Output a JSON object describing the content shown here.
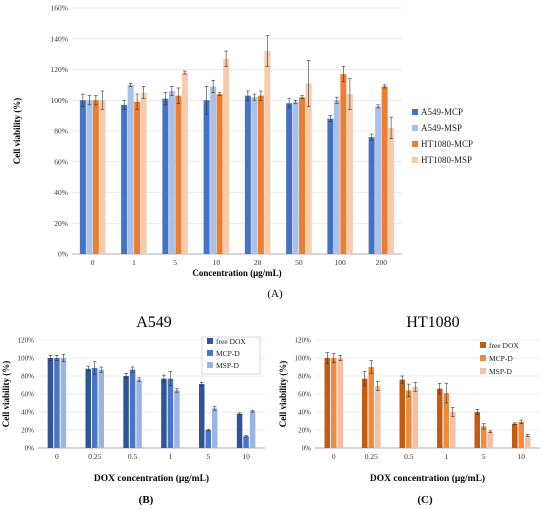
{
  "panel_labels": {
    "a": "(A)",
    "b": "(B)",
    "c": "(C)"
  },
  "colors": {
    "dark_blue": "#4472c4",
    "light_blue": "#a9c0e8",
    "dark_orange": "#ed7d31",
    "light_orange": "#f8cbad",
    "deep_blue": "#2f5597",
    "mid_blue": "#4a75c8",
    "pale_blue": "#9bb5e3",
    "deep_orange": "#c55a11",
    "mid_orange": "#f08a3c",
    "pale_orange": "#f6bfa3"
  },
  "chart_data": [
    {
      "type": "bar",
      "title": "",
      "xlabel": "Concentration (μg/mL)",
      "ylabel": "Cell viability (%)",
      "ylim": [
        0,
        160
      ],
      "yticks": [
        "0%",
        "20%",
        "40%",
        "60%",
        "80%",
        "100%",
        "120%",
        "140%",
        "160%"
      ],
      "categories": [
        "0",
        "1",
        "5",
        "10",
        "20",
        "50",
        "100",
        "200"
      ],
      "legend_position": "right",
      "series": [
        {
          "name": "A549-MCP",
          "color": "#4472c4",
          "values": [
            100,
            97,
            101,
            100,
            103,
            98,
            88,
            76
          ],
          "errors": [
            4,
            3,
            4,
            9,
            3,
            3,
            2,
            2
          ]
        },
        {
          "name": "A549-MSP",
          "color": "#a9c0e8",
          "values": [
            100,
            110,
            106,
            109,
            102,
            99,
            100,
            96
          ],
          "errors": [
            3,
            1,
            3,
            4,
            2,
            1,
            2,
            1
          ]
        },
        {
          "name": "HT1080-MCP",
          "color": "#ed7d31",
          "values": [
            100,
            99,
            103,
            104,
            103,
            102,
            117,
            109
          ],
          "errors": [
            3,
            5,
            5,
            1,
            3,
            1,
            5,
            1
          ]
        },
        {
          "name": "HT1080-MSP",
          "color": "#f8cbad",
          "values": [
            100,
            105,
            118,
            127,
            132,
            111,
            104,
            82
          ],
          "errors": [
            6,
            4,
            1,
            5,
            10,
            15,
            10,
            7
          ]
        }
      ]
    },
    {
      "type": "bar",
      "title": "A549",
      "xlabel": "DOX concentration (μg/mL)",
      "ylabel": "Cell viability (%)",
      "ylim": [
        0,
        120
      ],
      "yticks": [
        "0%",
        "20%",
        "40%",
        "60%",
        "80%",
        "100%",
        "120%"
      ],
      "categories": [
        "0",
        "0.25",
        "0.5",
        "1",
        "5",
        "10"
      ],
      "legend_position": "top-right",
      "series": [
        {
          "name": "free DOX",
          "color": "#2f5597",
          "values": [
            100,
            88,
            80,
            77,
            71,
            38
          ],
          "errors": [
            3,
            3,
            3,
            4,
            2,
            1
          ]
        },
        {
          "name": "MCP-D",
          "color": "#4a75c8",
          "values": [
            100,
            89,
            87,
            77,
            20,
            13
          ],
          "errors": [
            3,
            7,
            3,
            8,
            1,
            1
          ]
        },
        {
          "name": "MSP-D",
          "color": "#9bb5e3",
          "values": [
            100,
            87,
            76,
            64,
            44,
            41
          ],
          "errors": [
            4,
            3,
            2,
            2,
            2,
            1
          ]
        }
      ]
    },
    {
      "type": "bar",
      "title": "HT1080",
      "xlabel": "DOX concentration (μg/mL)",
      "ylabel": "Cell viability (%)",
      "ylim": [
        0,
        120
      ],
      "yticks": [
        "0%",
        "20%",
        "40%",
        "60%",
        "80%",
        "100%",
        "120%"
      ],
      "categories": [
        "0",
        "0.25",
        "0.5",
        "1",
        "5",
        "10"
      ],
      "legend_position": "top-right",
      "series": [
        {
          "name": "free DOX",
          "color": "#c55a11",
          "values": [
            100,
            77,
            76,
            66,
            40,
            27
          ],
          "errors": [
            6,
            8,
            4,
            6,
            3,
            1
          ]
        },
        {
          "name": "MCP-D",
          "color": "#f08a3c",
          "values": [
            100,
            90,
            64,
            61,
            24,
            29
          ],
          "errors": [
            5,
            7,
            7,
            11,
            3,
            2
          ]
        },
        {
          "name": "MSP-D",
          "color": "#f6bfa3",
          "values": [
            100,
            69,
            68,
            40,
            18,
            14
          ],
          "errors": [
            3,
            5,
            5,
            5,
            1,
            1
          ]
        }
      ]
    }
  ]
}
